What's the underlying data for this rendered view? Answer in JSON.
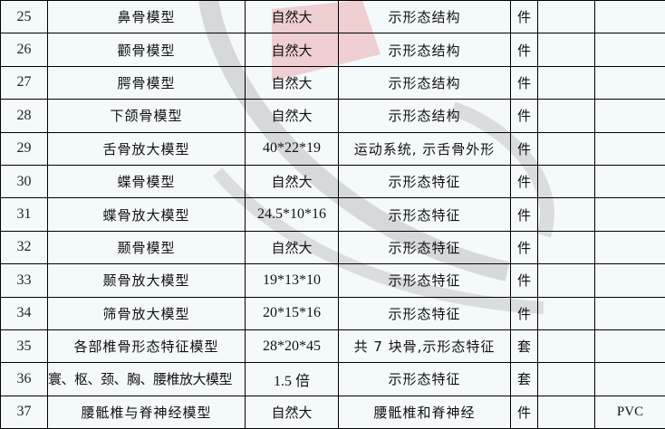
{
  "rows": [
    {
      "no": "25",
      "name": "鼻骨模型",
      "size": "自然大",
      "desc": "示形态结构",
      "unit": "件",
      "col6": "",
      "material": ""
    },
    {
      "no": "26",
      "name": "颧骨模型",
      "size": "自然大",
      "desc": "示形态结构",
      "unit": "件",
      "col6": "",
      "material": ""
    },
    {
      "no": "27",
      "name": "腭骨模型",
      "size": "自然大",
      "desc": "示形态结构",
      "unit": "件",
      "col6": "",
      "material": ""
    },
    {
      "no": "28",
      "name": "下颌骨模型",
      "size": "自然大",
      "desc": "示形态结构",
      "unit": "件",
      "col6": "",
      "material": ""
    },
    {
      "no": "29",
      "name": "舌骨放大模型",
      "size": "40*22*19",
      "desc": "运动系统, 示舌骨外形",
      "unit": "件",
      "col6": "",
      "material": ""
    },
    {
      "no": "30",
      "name": "蝶骨模型",
      "size": "自然大",
      "desc": "示形态特征",
      "unit": "件",
      "col6": "",
      "material": ""
    },
    {
      "no": "31",
      "name": "蝶骨放大模型",
      "size": "24.5*10*16",
      "desc": "示形态特征",
      "unit": "件",
      "col6": "",
      "material": ""
    },
    {
      "no": "32",
      "name": "颞骨模型",
      "size": "自然大",
      "desc": "示形态特征",
      "unit": "件",
      "col6": "",
      "material": ""
    },
    {
      "no": "33",
      "name": "颞骨放大模型",
      "size": "19*13*10",
      "desc": "示形态特征",
      "unit": "件",
      "col6": "",
      "material": ""
    },
    {
      "no": "34",
      "name": "筛骨放大模型",
      "size": "20*15*16",
      "desc": "示形态特征",
      "unit": "件",
      "col6": "",
      "material": ""
    },
    {
      "no": "35",
      "name": "各部椎骨形态特征模型",
      "size": "28*20*45",
      "desc": "共 7 块骨,示形态特征",
      "unit": "套",
      "col6": "",
      "material": ""
    },
    {
      "no": "36",
      "name": "寰、枢、颈、胸、腰椎放大模型",
      "size": "1.5 倍",
      "desc": "示形态特征",
      "unit": "套",
      "col6": "",
      "material": ""
    },
    {
      "no": "37",
      "name": "腰骶椎与脊神经模型",
      "size": "自然大",
      "desc": "腰骶椎和脊神经",
      "unit": "件",
      "col6": "",
      "material": "PVC"
    }
  ]
}
